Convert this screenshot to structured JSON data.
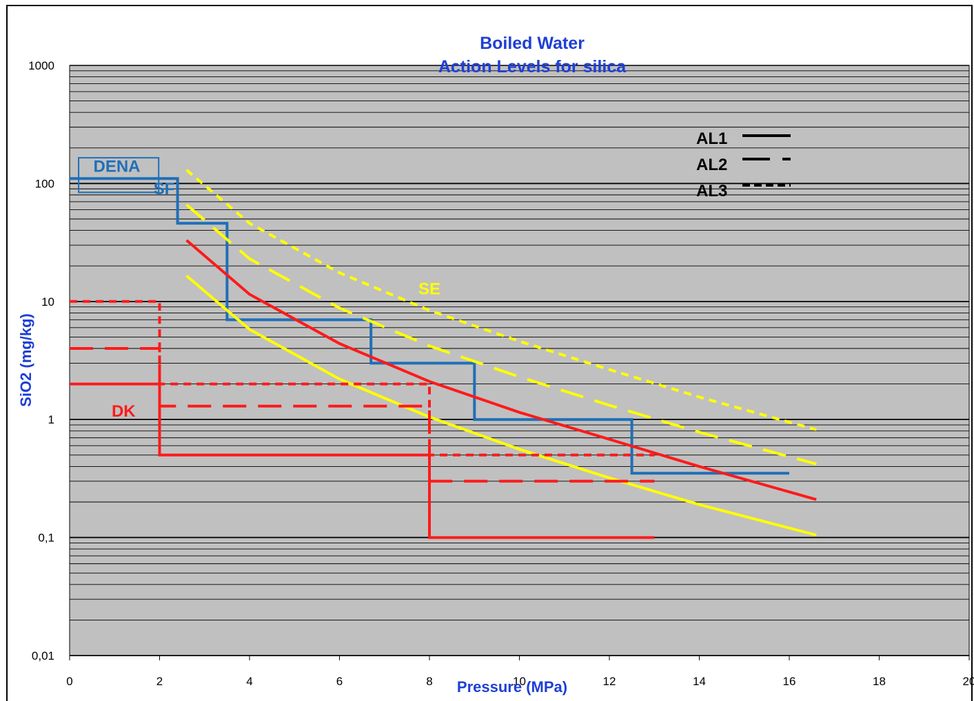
{
  "chart_data": {
    "type": "line",
    "title": "Boiled Water",
    "subtitle": "Action Levels for silica",
    "xlabel": "Pressure (MPa)",
    "ylabel": "SiO2 (mg/kg)",
    "xlim": [
      0,
      20
    ],
    "ylim": [
      0.01,
      1000
    ],
    "y_scale": "log",
    "x_ticks": [
      "0",
      "2",
      "4",
      "6",
      "8",
      "10",
      "12",
      "14",
      "16",
      "18",
      "20"
    ],
    "y_ticks": [
      "0,01",
      "0,1",
      "1",
      "10",
      "100",
      "1000"
    ],
    "grid": true,
    "legend": {
      "position": "top-right",
      "entries": [
        {
          "label": "AL1",
          "style": "solid"
        },
        {
          "label": "AL2",
          "style": "long-dash"
        },
        {
          "label": "AL3",
          "style": "short-dash"
        }
      ]
    },
    "annotations": [
      {
        "text": "DENA",
        "color": "#1f6fb8"
      },
      {
        "text": "SF",
        "color": "#1f6fb8"
      },
      {
        "text": "SE",
        "color": "#ffff00"
      },
      {
        "text": "DK",
        "color": "#ff1a1a"
      }
    ],
    "colors": {
      "plot_bg": "#c0c0c0",
      "blue": "#1f6fb8",
      "red": "#ff1a1a",
      "yellow": "#ffff00"
    },
    "series": [
      {
        "group": "DENA",
        "style": "solid",
        "color": "#1f6fb8",
        "points": [
          [
            0,
            110
          ],
          [
            2.4,
            110
          ],
          [
            2.4,
            46
          ],
          [
            3.5,
            46
          ],
          [
            3.5,
            7
          ],
          [
            6.7,
            7
          ],
          [
            6.7,
            3
          ],
          [
            9,
            3
          ],
          [
            9,
            1
          ],
          [
            12.5,
            1
          ],
          [
            12.5,
            0.35
          ],
          [
            16,
            0.35
          ]
        ]
      },
      {
        "group": "SF",
        "style": "solid",
        "color": "#ff1a1a",
        "points": [
          [
            2.6,
            33
          ],
          [
            4,
            11.5
          ],
          [
            6,
            4.4
          ],
          [
            8,
            2.1
          ],
          [
            10,
            1.15
          ],
          [
            12,
            0.68
          ],
          [
            14,
            0.4
          ],
          [
            16.6,
            0.21
          ]
        ]
      },
      {
        "group": "SE",
        "style": "solid",
        "color": "#ffff00",
        "points": [
          [
            2.6,
            16.5
          ],
          [
            4,
            5.8
          ],
          [
            6,
            2.2
          ],
          [
            8,
            1.05
          ],
          [
            10,
            0.56
          ],
          [
            12,
            0.32
          ],
          [
            14,
            0.19
          ],
          [
            16.6,
            0.105
          ]
        ]
      },
      {
        "group": "SE",
        "style": "long-dash",
        "color": "#ffff00",
        "points": [
          [
            2.6,
            66
          ],
          [
            4,
            23
          ],
          [
            6,
            8.8
          ],
          [
            8,
            4.2
          ],
          [
            10,
            2.3
          ],
          [
            12,
            1.32
          ],
          [
            14,
            0.78
          ],
          [
            16.6,
            0.42
          ]
        ]
      },
      {
        "group": "SE",
        "style": "short-dash",
        "color": "#ffff00",
        "points": [
          [
            2.6,
            130
          ],
          [
            4,
            46
          ],
          [
            6,
            17.5
          ],
          [
            8,
            8.4
          ],
          [
            10,
            4.6
          ],
          [
            12,
            2.65
          ],
          [
            14,
            1.55
          ],
          [
            16.6,
            0.82
          ]
        ]
      },
      {
        "group": "DK",
        "style": "solid",
        "color": "#ff1a1a",
        "points": [
          [
            0,
            2
          ],
          [
            2,
            2
          ],
          [
            2,
            0.5
          ],
          [
            8,
            0.5
          ],
          [
            8,
            0.1
          ],
          [
            13,
            0.1
          ]
        ]
      },
      {
        "group": "DK",
        "style": "long-dash",
        "color": "#ff1a1a",
        "points": [
          [
            0,
            4
          ],
          [
            2,
            4
          ],
          [
            2,
            1.3
          ],
          [
            8,
            1.3
          ],
          [
            8,
            0.3
          ],
          [
            13,
            0.3
          ]
        ]
      },
      {
        "group": "DK",
        "style": "short-dash",
        "color": "#ff1a1a",
        "points": [
          [
            0,
            10
          ],
          [
            2,
            10
          ],
          [
            2,
            2
          ],
          [
            8,
            2
          ],
          [
            8,
            0.5
          ],
          [
            13,
            0.5
          ]
        ]
      }
    ]
  }
}
